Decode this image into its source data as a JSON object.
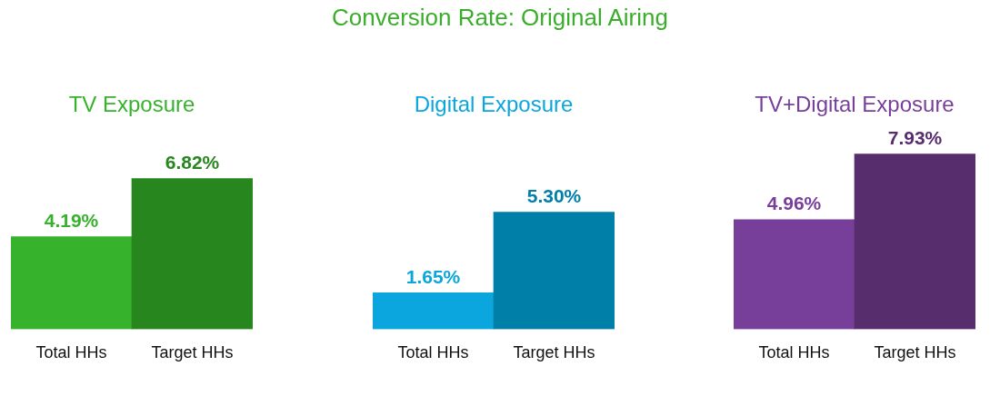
{
  "chart_data": [
    {
      "type": "other",
      "title": "Conversion Rate: Original Airing"
    },
    {
      "type": "bar",
      "title": "TV Exposure",
      "categories": [
        "Total HHs",
        "Target HHs"
      ],
      "values": [
        4.19,
        6.82
      ],
      "colors": [
        "#36b22c",
        "#27861e"
      ],
      "value_labels": [
        "4.19%",
        "6.82%"
      ],
      "grid": false,
      "legend": false,
      "tick_labels": "x"
    },
    {
      "type": "bar",
      "title": "Digital Exposure",
      "categories": [
        "Total HHs",
        "Target HHs"
      ],
      "values": [
        1.65,
        5.3
      ],
      "colors": [
        "#0aa6dd",
        "#0080a8"
      ],
      "value_labels": [
        "1.65%",
        "5.30%"
      ],
      "grid": false,
      "legend": false,
      "tick_labels": "x"
    },
    {
      "type": "bar",
      "title": "TV+Digital Exposure",
      "categories": [
        "Total HHs",
        "Target HHs"
      ],
      "values": [
        4.96,
        7.93
      ],
      "colors": [
        "#773f9a",
        "#582d6e"
      ],
      "value_labels": [
        "4.96%",
        "7.93%"
      ],
      "grid": false,
      "legend": false,
      "tick_labels": "x"
    }
  ]
}
